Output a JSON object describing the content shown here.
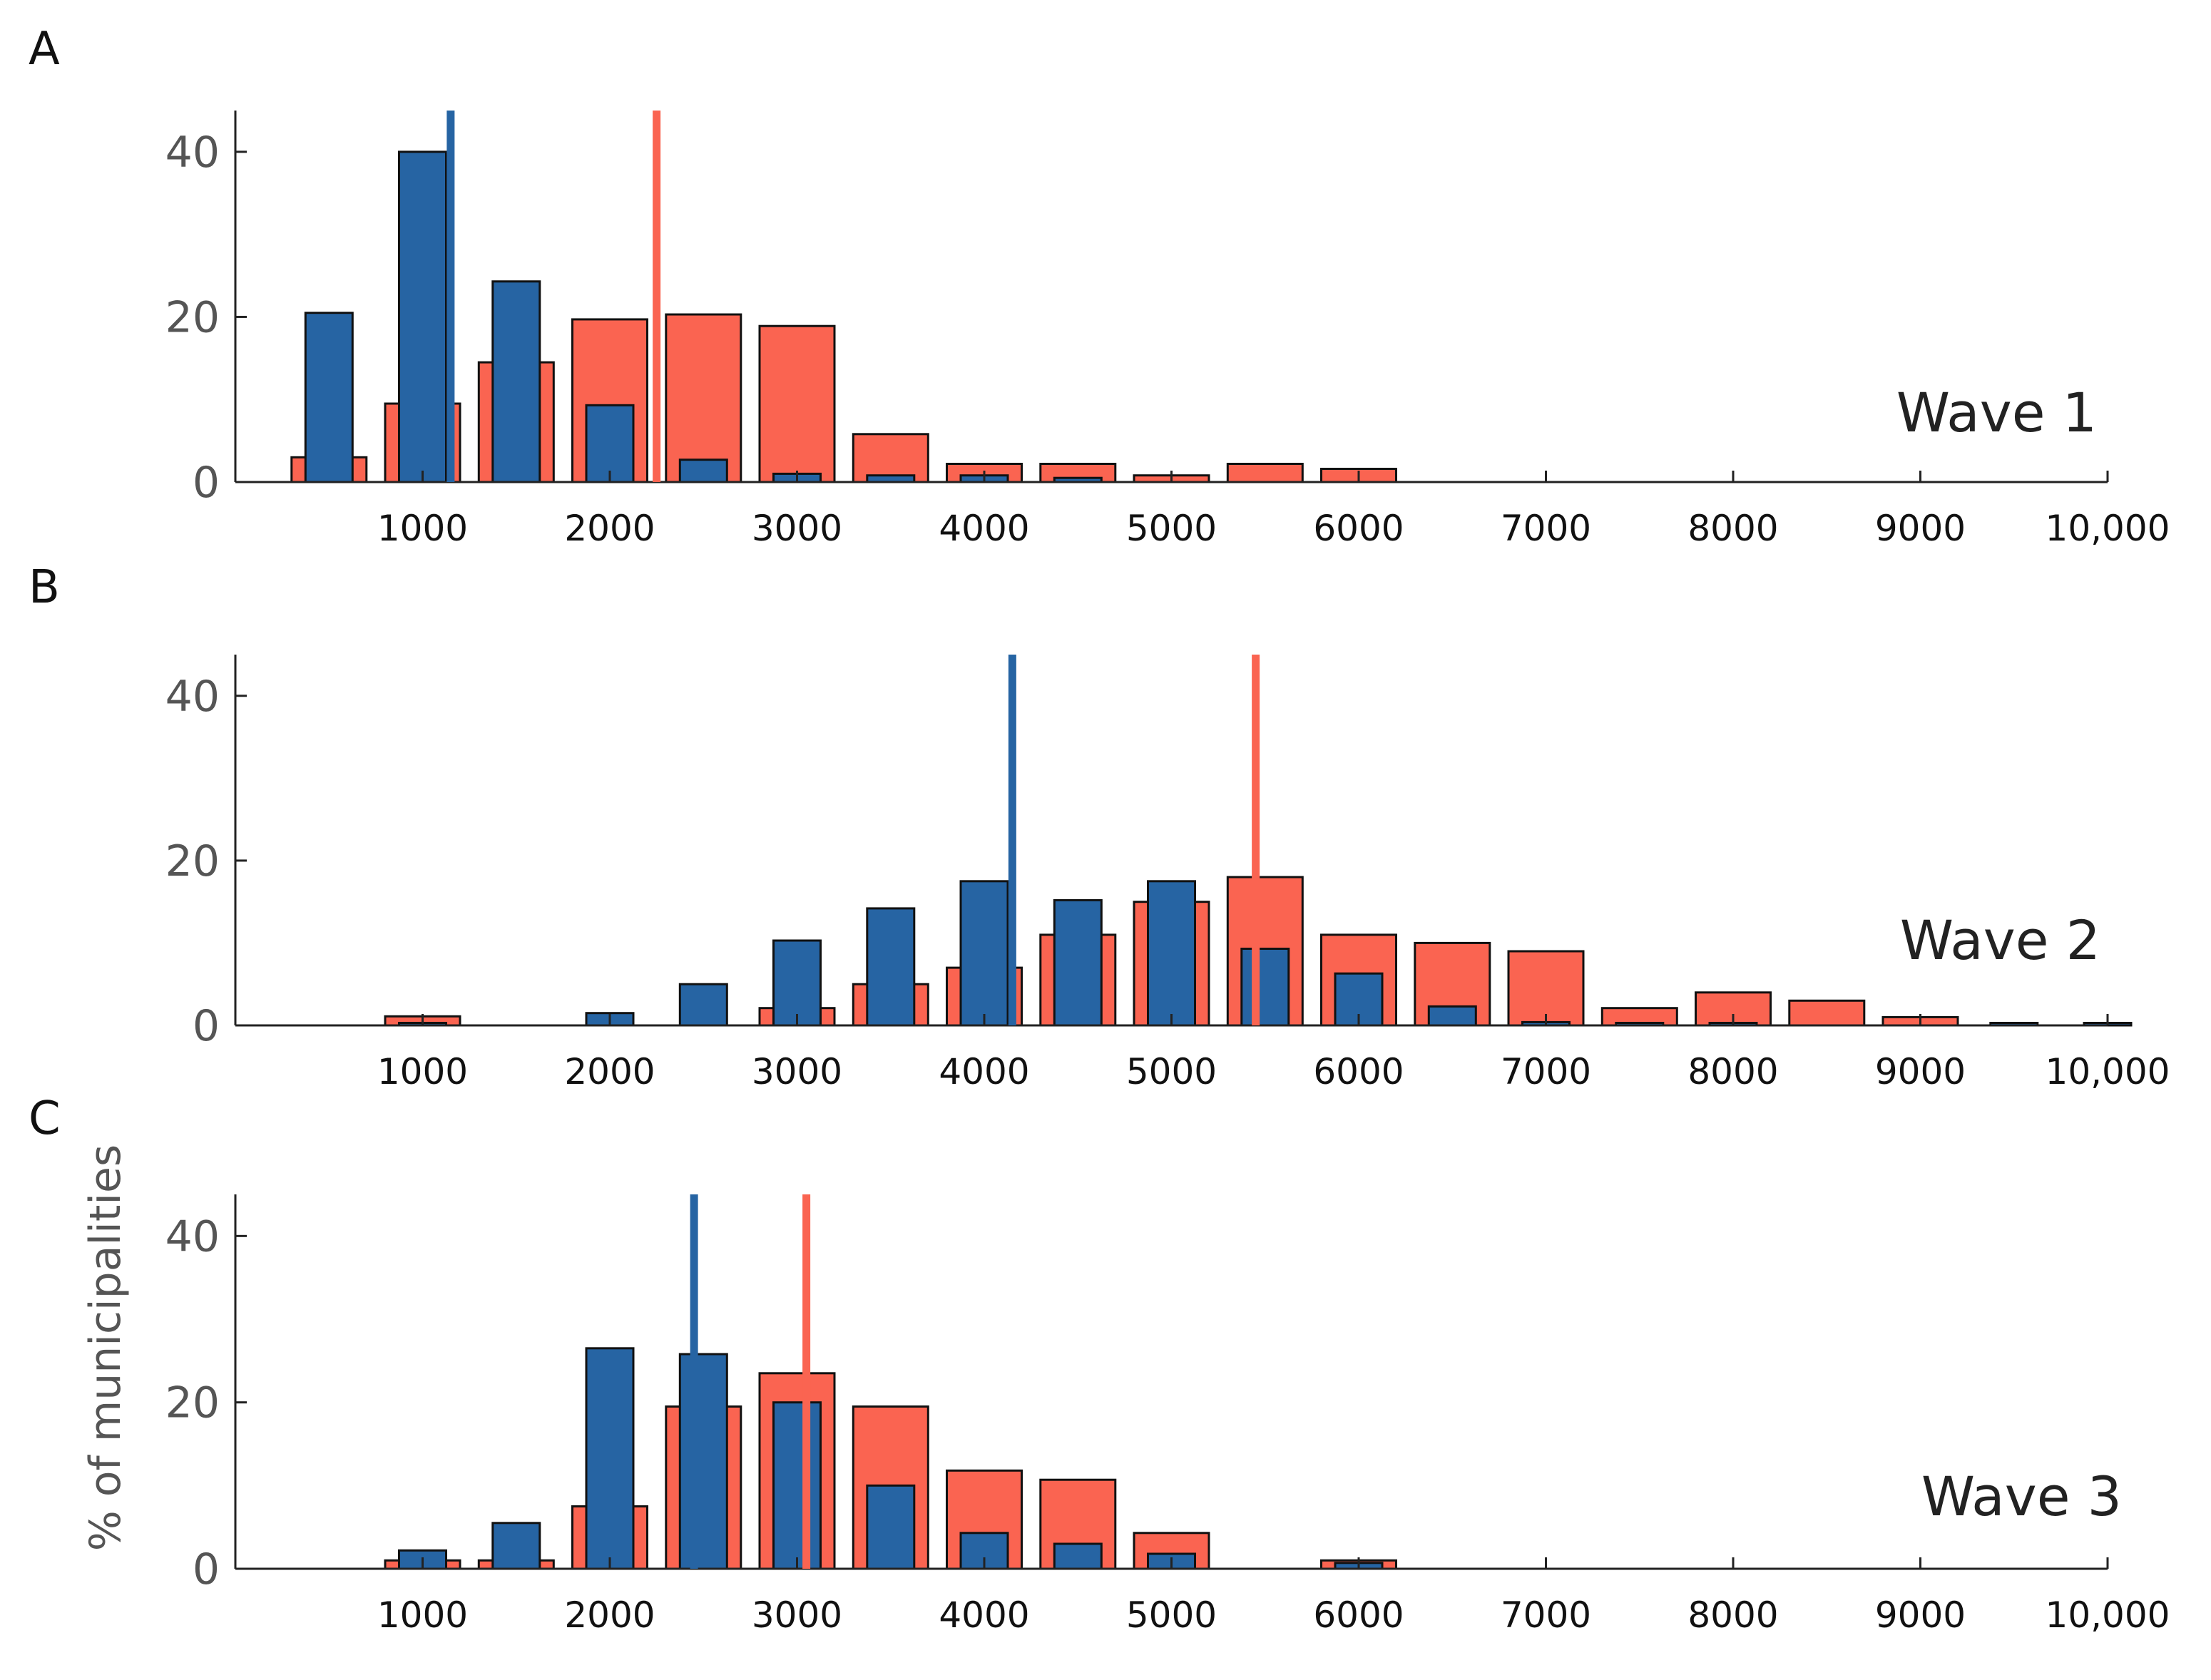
{
  "chart_data": [
    {
      "type": "bar",
      "panel_label": "A",
      "wave_label": "Wave 1",
      "xlim": [
        0,
        10000
      ],
      "ylim": [
        0,
        45
      ],
      "yticks": [
        0,
        20,
        40
      ],
      "xticks": [
        1000,
        2000,
        3000,
        4000,
        5000,
        6000,
        7000,
        8000,
        9000,
        10000
      ],
      "xtick_labels": [
        "1000",
        "2000",
        "3000",
        "4000",
        "5000",
        "6000",
        "7000",
        "8000",
        "9000",
        "10,000"
      ],
      "bin_centers": [
        500,
        1000,
        1500,
        2000,
        2500,
        3000,
        3500,
        4000,
        4500,
        5000,
        5500,
        6000,
        6500,
        7000,
        7500,
        8000,
        8500,
        9000,
        9500,
        10000
      ],
      "series": [
        {
          "name": "red",
          "color": "#fa6451",
          "median": 2250,
          "values": [
            3,
            9.5,
            14.5,
            19.7,
            20.3,
            18.9,
            5.8,
            2.2,
            2.2,
            0.8,
            2.2,
            1.6,
            0,
            0,
            0,
            0,
            0,
            0,
            0,
            0
          ]
        },
        {
          "name": "blue",
          "color": "#2664a3",
          "median": 1150,
          "values": [
            20.5,
            40,
            24.3,
            9.3,
            2.7,
            1,
            0.8,
            0.8,
            0.5,
            0,
            0,
            0,
            0,
            0,
            0,
            0,
            0,
            0,
            0,
            0
          ]
        }
      ]
    },
    {
      "type": "bar",
      "panel_label": "B",
      "wave_label": "Wave 2",
      "xlim": [
        0,
        10000
      ],
      "ylim": [
        0,
        45
      ],
      "yticks": [
        0,
        20,
        40
      ],
      "xticks": [
        1000,
        2000,
        3000,
        4000,
        5000,
        6000,
        7000,
        8000,
        9000,
        10000
      ],
      "xtick_labels": [
        "1000",
        "2000",
        "3000",
        "4000",
        "5000",
        "6000",
        "7000",
        "8000",
        "9000",
        "10,000"
      ],
      "bin_centers": [
        500,
        1000,
        1500,
        2000,
        2500,
        3000,
        3500,
        4000,
        4500,
        5000,
        5500,
        6000,
        6500,
        7000,
        7500,
        8000,
        8500,
        9000,
        9500,
        10000
      ],
      "series": [
        {
          "name": "red",
          "color": "#fa6451",
          "median": 5450,
          "values": [
            0,
            1.1,
            0,
            0,
            0,
            2.1,
            5,
            7,
            11,
            15,
            18,
            11,
            10,
            9,
            2.1,
            4,
            3,
            1,
            0,
            0
          ]
        },
        {
          "name": "blue",
          "color": "#2664a3",
          "median": 4150,
          "values": [
            0,
            0.3,
            0,
            1.5,
            5,
            10.3,
            14.2,
            17.5,
            15.2,
            17.5,
            9.3,
            6.3,
            2.3,
            0.4,
            0.3,
            0.3,
            0,
            0,
            0.3,
            0.3
          ]
        }
      ]
    },
    {
      "type": "bar",
      "panel_label": "C",
      "wave_label": "Wave 3",
      "ylabel": "% of municipalities",
      "xlim": [
        0,
        10000
      ],
      "ylim": [
        0,
        45
      ],
      "yticks": [
        0,
        20,
        40
      ],
      "xticks": [
        1000,
        2000,
        3000,
        4000,
        5000,
        6000,
        7000,
        8000,
        9000,
        10000
      ],
      "xtick_labels": [
        "1000",
        "2000",
        "3000",
        "4000",
        "5000",
        "6000",
        "7000",
        "8000",
        "9000",
        "10,000"
      ],
      "bin_centers": [
        500,
        1000,
        1500,
        2000,
        2500,
        3000,
        3500,
        4000,
        4500,
        5000,
        5500,
        6000,
        6500,
        7000,
        7500,
        8000,
        8500,
        9000,
        9500,
        10000
      ],
      "series": [
        {
          "name": "red",
          "color": "#fa6451",
          "median": 3050,
          "values": [
            0,
            1,
            1,
            7.5,
            19.5,
            23.5,
            19.5,
            11.8,
            10.7,
            4.3,
            0,
            1,
            0,
            0,
            0,
            0,
            0,
            0,
            0,
            0
          ]
        },
        {
          "name": "blue",
          "color": "#2664a3",
          "median": 2450,
          "values": [
            0,
            2.2,
            5.5,
            26.5,
            25.8,
            20,
            10,
            4.3,
            3,
            1.8,
            0,
            0.7,
            0,
            0,
            0,
            0,
            0,
            0,
            0,
            0
          ]
        }
      ]
    }
  ]
}
